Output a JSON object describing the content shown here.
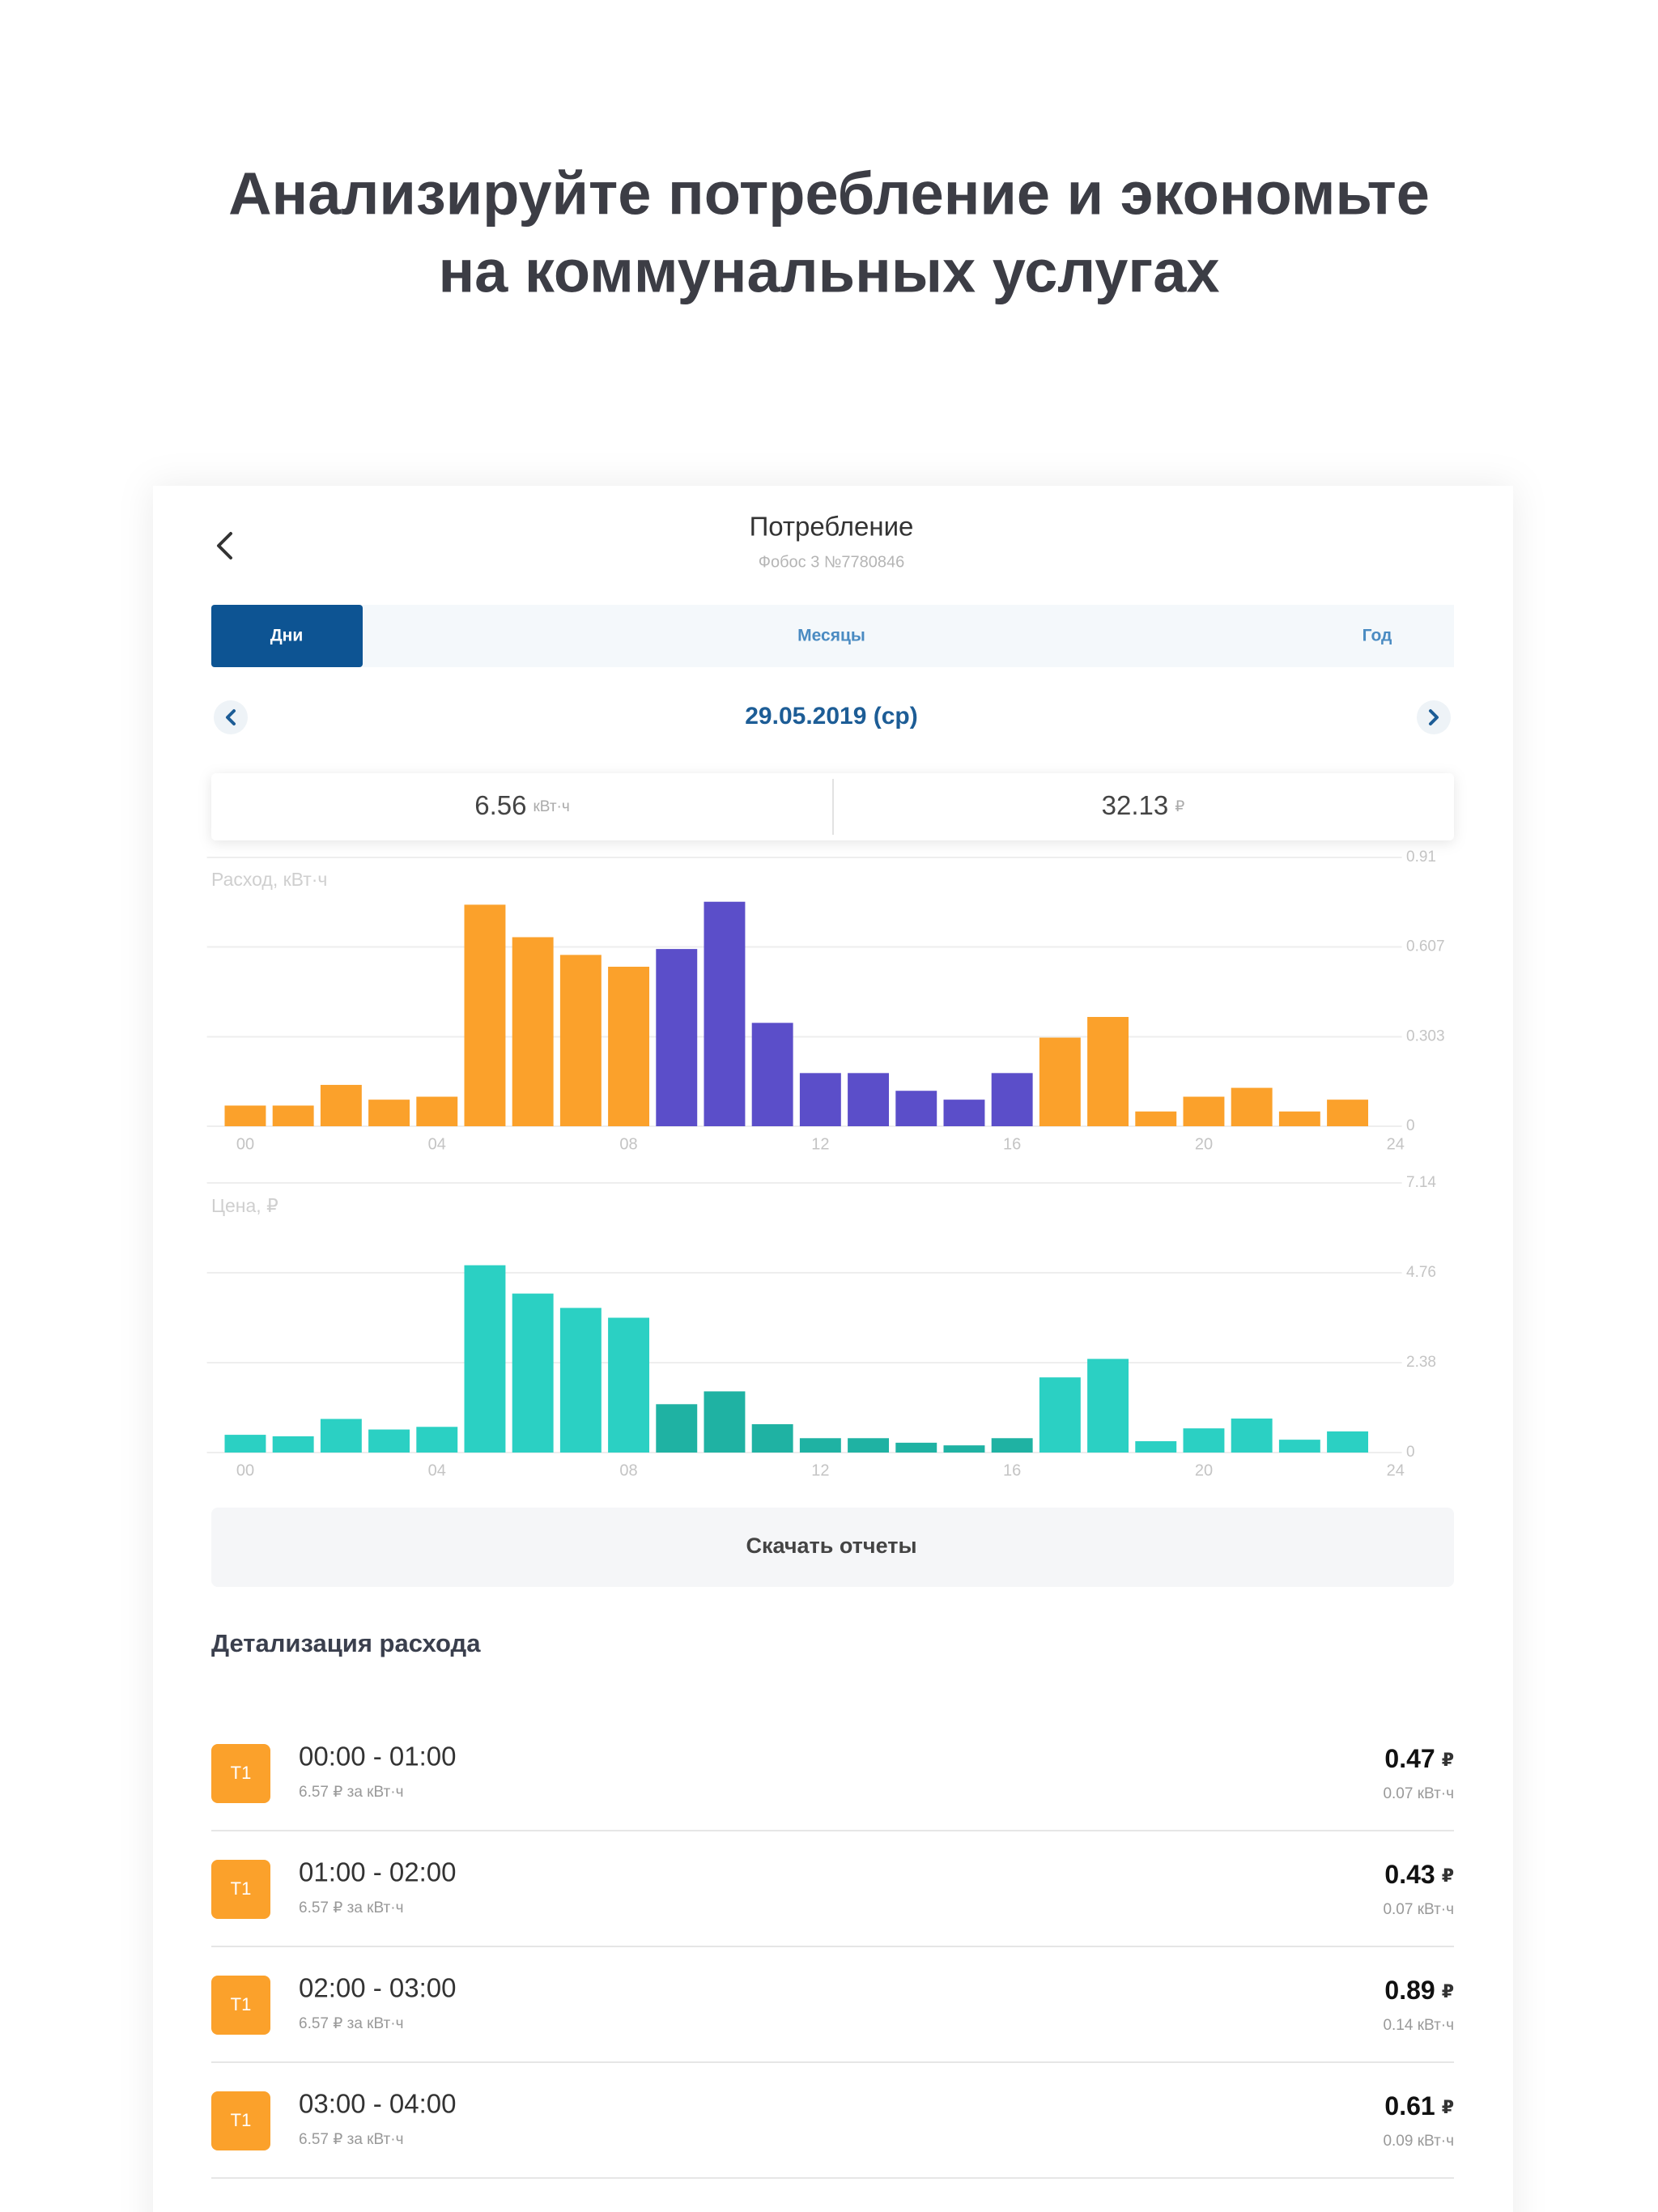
{
  "header": {
    "title_lines": [
      "Анализируйте потребление и экономьте",
      "на коммунальных услугах"
    ]
  },
  "screen": {
    "title": "Потребление",
    "subtitle": "Фобос 3 №7780846",
    "tabs": [
      "Дни",
      "Месяцы",
      "Год"
    ],
    "active_tab": 0,
    "date": "29.05.2019 (ср)",
    "summary": [
      {
        "value": 6.56,
        "unit": "кВт·ч"
      },
      {
        "value": 32.13,
        "unit": "₽"
      }
    ],
    "download_button": "Скачать отчеты",
    "details_title": "Детализация расхода",
    "details": [
      {
        "tariff": "T1",
        "period": "00:00 - 01:00",
        "rate": "6.57 ₽ за кВт·ч",
        "cost": 0.47,
        "currency": "₽",
        "usage": "0.07 кВт·ч"
      },
      {
        "tariff": "T1",
        "period": "01:00 - 02:00",
        "rate": "6.57 ₽ за кВт·ч",
        "cost": 0.43,
        "currency": "₽",
        "usage": "0.07 кВт·ч"
      },
      {
        "tariff": "T1",
        "period": "02:00 - 03:00",
        "rate": "6.57 ₽ за кВт·ч",
        "cost": 0.89,
        "currency": "₽",
        "usage": "0.14 кВт·ч"
      },
      {
        "tariff": "T1",
        "period": "03:00 - 04:00",
        "rate": "6.57 ₽ за кВт·ч",
        "cost": 0.61,
        "currency": "₽",
        "usage": "0.09 кВт·ч"
      }
    ]
  },
  "chart_data": [
    {
      "type": "bar",
      "title": "Расход, кВт·ч",
      "x": [
        0,
        1,
        2,
        3,
        4,
        5,
        6,
        7,
        8,
        9,
        10,
        11,
        12,
        13,
        14,
        15,
        16,
        17,
        18,
        19,
        20,
        21,
        22,
        23
      ],
      "values": [
        0.07,
        0.07,
        0.14,
        0.09,
        0.1,
        0.75,
        0.64,
        0.58,
        0.54,
        0.6,
        0.76,
        0.35,
        0.18,
        0.18,
        0.12,
        0.09,
        0.18,
        0.3,
        0.37,
        0.05,
        0.1,
        0.13,
        0.05,
        0.09
      ],
      "colors": [
        "#fba12b",
        "#fba12b",
        "#fba12b",
        "#fba12b",
        "#fba12b",
        "#fba12b",
        "#fba12b",
        "#fba12b",
        "#fba12b",
        "#5b4ec9",
        "#5b4ec9",
        "#5b4ec9",
        "#5b4ec9",
        "#5b4ec9",
        "#5b4ec9",
        "#5b4ec9",
        "#5b4ec9",
        "#fba12b",
        "#fba12b",
        "#fba12b",
        "#fba12b",
        "#fba12b",
        "#fba12b",
        "#fba12b"
      ],
      "xlim": [
        -0.8,
        24.2
      ],
      "xticks": [
        {
          "value": 0,
          "label": "00"
        },
        {
          "value": 4,
          "label": "04"
        },
        {
          "value": 8,
          "label": "08"
        },
        12,
        16,
        20,
        24
      ],
      "ylim": [
        0,
        0.91
      ],
      "yticks": [
        0,
        0.303,
        0.607,
        0.91
      ],
      "grid": true
    },
    {
      "type": "bar",
      "title": "Цена, ₽",
      "x": [
        0,
        1,
        2,
        3,
        4,
        5,
        6,
        7,
        8,
        9,
        10,
        11,
        12,
        13,
        14,
        15,
        16,
        17,
        18,
        19,
        20,
        21,
        22,
        23
      ],
      "values": [
        0.47,
        0.43,
        0.89,
        0.61,
        0.68,
        4.96,
        4.21,
        3.83,
        3.57,
        1.28,
        1.62,
        0.75,
        0.38,
        0.38,
        0.26,
        0.19,
        0.38,
        1.99,
        2.48,
        0.3,
        0.64,
        0.9,
        0.34,
        0.56
      ],
      "colors": [
        "#2bd0c3",
        "#2bd0c3",
        "#2bd0c3",
        "#2bd0c3",
        "#2bd0c3",
        "#2bd0c3",
        "#2bd0c3",
        "#2bd0c3",
        "#2bd0c3",
        "#1fb2a3",
        "#1fb2a3",
        "#1fb2a3",
        "#1fb2a3",
        "#1fb2a3",
        "#1fb2a3",
        "#1fb2a3",
        "#1fb2a3",
        "#2bd0c3",
        "#2bd0c3",
        "#2bd0c3",
        "#2bd0c3",
        "#2bd0c3",
        "#2bd0c3",
        "#2bd0c3"
      ],
      "xlim": [
        -0.8,
        24.2
      ],
      "xticks": [
        {
          "value": 0,
          "label": "00"
        },
        {
          "value": 4,
          "label": "04"
        },
        {
          "value": 8,
          "label": "08"
        },
        12,
        16,
        20,
        24
      ],
      "ylim": [
        0,
        7.14
      ],
      "yticks": [
        0,
        2.38,
        4.76,
        7.14
      ],
      "grid": true
    }
  ]
}
